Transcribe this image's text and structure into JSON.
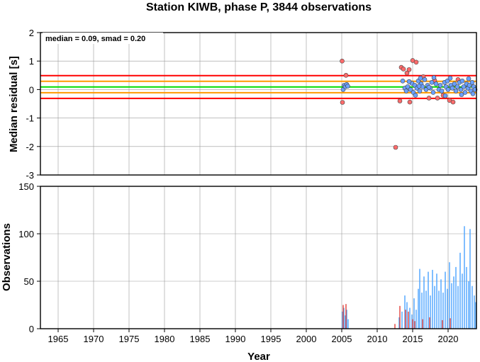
{
  "chart_data": [
    {
      "type": "scatter",
      "title": "Station KIWB, phase P, 3844 observations",
      "ylabel": "Median residual [s]",
      "xlabel": "",
      "xlim": [
        1962.5,
        2024
      ],
      "ylim": [
        -3,
        2
      ],
      "xticks": [
        1965,
        1970,
        1975,
        1980,
        1985,
        1990,
        1995,
        2000,
        2005,
        2010,
        2015,
        2020
      ],
      "yticks": [
        -3,
        -2,
        -1,
        0,
        1,
        2
      ],
      "grid": true,
      "annotation": "median = 0.09, smad = 0.20",
      "reference_lines": [
        {
          "y": 0.49,
          "color": "#ff0000"
        },
        {
          "y": 0.29,
          "color": "#ff9900"
        },
        {
          "y": 0.09,
          "color": "#00dd00"
        },
        {
          "y": -0.11,
          "color": "#ff9900"
        },
        {
          "y": -0.31,
          "color": "#ff0000"
        }
      ],
      "series": [
        {
          "color": "#ff6b6b",
          "points": [
            [
              2005.05,
              1.0
            ],
            [
              2005.1,
              -0.45
            ],
            [
              2005.6,
              0.5
            ],
            [
              2012.6,
              -2.03
            ],
            [
              2013.2,
              -0.4
            ],
            [
              2013.4,
              0.78
            ],
            [
              2013.7,
              0.72
            ],
            [
              2014.2,
              0.58
            ],
            [
              2014.5,
              0.7
            ],
            [
              2014.6,
              -0.44
            ],
            [
              2015.0,
              1.02
            ],
            [
              2015.5,
              0.96
            ],
            [
              2016.5,
              0.45
            ],
            [
              2017.3,
              -0.3
            ],
            [
              2018.1,
              0.32
            ],
            [
              2018.5,
              -0.3
            ],
            [
              2019.3,
              -0.2
            ],
            [
              2020.2,
              -0.38
            ],
            [
              2020.7,
              -0.44
            ],
            [
              2021.4,
              0.35
            ]
          ]
        },
        {
          "color": "#6aa0ff",
          "points": [
            [
              2005.2,
              0.0
            ],
            [
              2005.35,
              0.15
            ],
            [
              2005.5,
              0.1
            ],
            [
              2005.7,
              0.18
            ],
            [
              2005.85,
              0.12
            ],
            [
              2013.6,
              0.3
            ],
            [
              2013.9,
              0.05
            ],
            [
              2014.1,
              -0.05
            ],
            [
              2014.3,
              0.1
            ],
            [
              2014.7,
              0.0
            ],
            [
              2014.9,
              0.22
            ],
            [
              2015.1,
              -0.1
            ],
            [
              2015.3,
              0.15
            ],
            [
              2015.6,
              0.05
            ],
            [
              2015.8,
              0.3
            ],
            [
              2016.0,
              -0.05
            ],
            [
              2016.2,
              0.2
            ],
            [
              2016.4,
              0.1
            ],
            [
              2016.7,
              0.35
            ],
            [
              2016.9,
              0.0
            ],
            [
              2017.1,
              0.15
            ],
            [
              2017.5,
              0.05
            ],
            [
              2017.7,
              0.25
            ],
            [
              2017.9,
              -0.1
            ],
            [
              2018.3,
              0.2
            ],
            [
              2018.7,
              0.0
            ],
            [
              2018.9,
              0.15
            ],
            [
              2019.1,
              -0.05
            ],
            [
              2019.5,
              0.25
            ],
            [
              2019.7,
              0.1
            ],
            [
              2019.9,
              0.3
            ],
            [
              2020.0,
              0.0
            ],
            [
              2020.4,
              0.15
            ],
            [
              2020.6,
              0.05
            ],
            [
              2020.9,
              0.2
            ],
            [
              2021.1,
              -0.05
            ],
            [
              2021.3,
              0.1
            ],
            [
              2021.6,
              0.25
            ],
            [
              2021.8,
              0.0
            ],
            [
              2022.0,
              0.3
            ],
            [
              2022.2,
              0.1
            ],
            [
              2022.4,
              -0.1
            ],
            [
              2022.6,
              0.2
            ],
            [
              2022.8,
              0.05
            ],
            [
              2023.0,
              0.15
            ],
            [
              2023.2,
              -0.05
            ],
            [
              2023.4,
              0.25
            ],
            [
              2023.6,
              0.1
            ],
            [
              2023.8,
              0.0
            ],
            [
              2016.1,
              0.4
            ],
            [
              2018.0,
              0.42
            ],
            [
              2020.3,
              0.4
            ],
            [
              2022.9,
              0.38
            ],
            [
              2015.4,
              -0.2
            ],
            [
              2019.6,
              -0.22
            ],
            [
              2021.9,
              -0.18
            ],
            [
              2017.3,
              0.08
            ],
            [
              2014.5,
              0.28
            ],
            [
              2023.5,
              -0.15
            ],
            [
              2015.9,
              0.12
            ]
          ]
        }
      ]
    },
    {
      "type": "bar",
      "ylabel": "Observations",
      "xlabel": "Year",
      "xlim": [
        1962.5,
        2024
      ],
      "ylim": [
        0,
        150
      ],
      "xticks": [
        1965,
        1970,
        1975,
        1980,
        1985,
        1990,
        1995,
        2000,
        2005,
        2010,
        2015,
        2020
      ],
      "yticks": [
        0,
        50,
        100,
        150
      ],
      "grid": true,
      "series": [
        {
          "color": "#4aa3ff",
          "bars": [
            [
              2005.1,
              18
            ],
            [
              2005.3,
              22
            ],
            [
              2005.5,
              14
            ],
            [
              2005.7,
              20
            ],
            [
              2005.9,
              10
            ],
            [
              2013.1,
              12
            ],
            [
              2013.5,
              18
            ],
            [
              2013.9,
              35
            ],
            [
              2014.2,
              28
            ],
            [
              2014.6,
              22
            ],
            [
              2014.9,
              15
            ],
            [
              2015.2,
              32
            ],
            [
              2015.5,
              20
            ],
            [
              2015.8,
              42
            ],
            [
              2016.0,
              63
            ],
            [
              2016.3,
              38
            ],
            [
              2016.6,
              55
            ],
            [
              2016.9,
              40
            ],
            [
              2017.2,
              60
            ],
            [
              2017.5,
              35
            ],
            [
              2017.8,
              62
            ],
            [
              2018.1,
              45
            ],
            [
              2018.4,
              58
            ],
            [
              2018.7,
              40
            ],
            [
              2019.0,
              52
            ],
            [
              2019.3,
              38
            ],
            [
              2019.6,
              60
            ],
            [
              2019.9,
              42
            ],
            [
              2020.2,
              70
            ],
            [
              2020.5,
              48
            ],
            [
              2020.8,
              55
            ],
            [
              2021.1,
              65
            ],
            [
              2021.4,
              45
            ],
            [
              2021.7,
              80
            ],
            [
              2022.0,
              58
            ],
            [
              2022.3,
              108
            ],
            [
              2022.6,
              65
            ],
            [
              2022.9,
              50
            ],
            [
              2023.1,
              105
            ],
            [
              2023.4,
              45
            ],
            [
              2023.7,
              35
            ],
            [
              2023.9,
              28
            ]
          ]
        },
        {
          "color": "#e0403a",
          "bars": [
            [
              2005.2,
              25
            ],
            [
              2005.6,
              26
            ],
            [
              2012.5,
              5
            ],
            [
              2013.2,
              24
            ],
            [
              2014.0,
              20
            ],
            [
              2014.4,
              18
            ],
            [
              2015.0,
              10
            ],
            [
              2015.3,
              8
            ],
            [
              2016.4,
              10
            ],
            [
              2017.4,
              12
            ],
            [
              2019.2,
              9
            ],
            [
              2020.3,
              11
            ]
          ]
        }
      ]
    }
  ]
}
